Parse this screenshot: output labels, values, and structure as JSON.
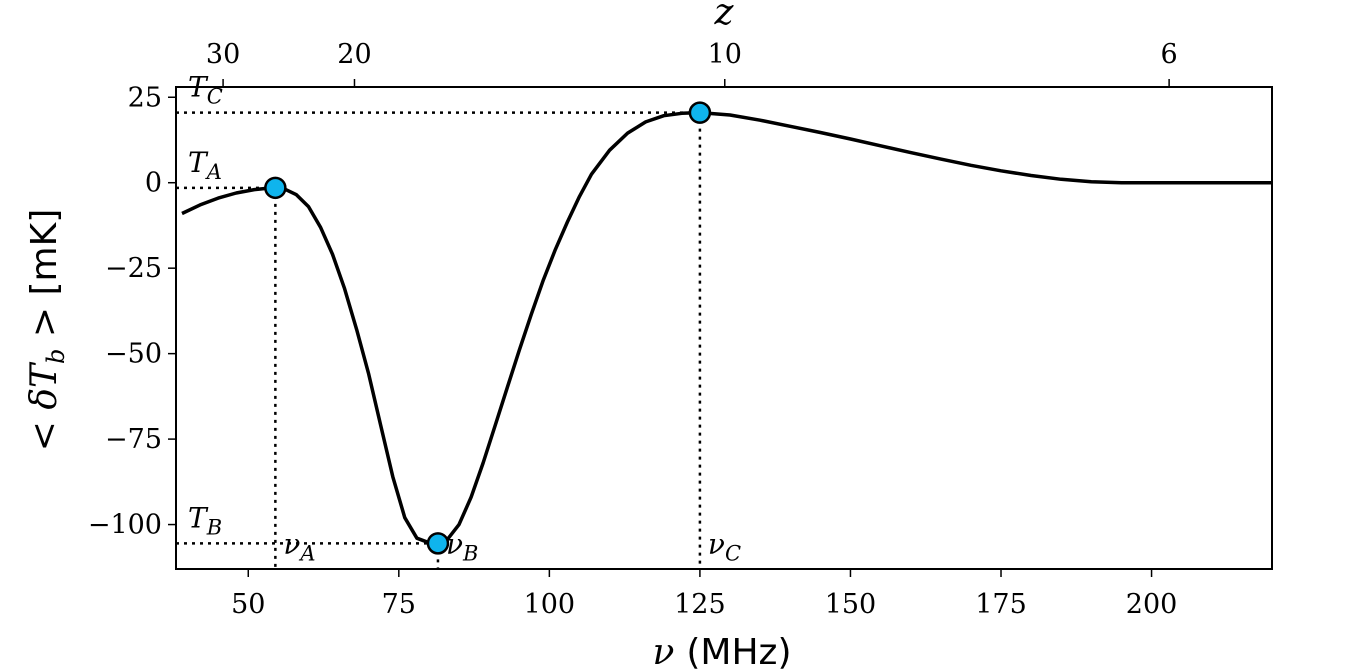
{
  "chart_data": {
    "type": "line",
    "xlabel_symbol": "ν",
    "xlabel_unit": "(MHz)",
    "ylabel_prefix": "< δT",
    "ylabel_sub": "b",
    "ylabel_suffix": " > [mK]",
    "top_axis_label": "z",
    "xlim": [
      38,
      220
    ],
    "ylim": [
      -113,
      28
    ],
    "x_ticks": [
      50,
      75,
      100,
      125,
      150,
      175,
      200
    ],
    "y_ticks": [
      25,
      0,
      -25,
      -50,
      -75,
      -100
    ],
    "y_tick_labels": [
      "25",
      "0",
      "−25",
      "−50",
      "−75",
      "−100"
    ],
    "top_ticks": [
      {
        "label": "30",
        "z": 30
      },
      {
        "label": "20",
        "z": 20
      },
      {
        "label": "10",
        "z": 10
      },
      {
        "label": "6",
        "z": 6
      }
    ],
    "series": [
      {
        "color": "#000000",
        "x": [
          39,
          42,
          45,
          48,
          51,
          54,
          56,
          58,
          60,
          62,
          64,
          66,
          68,
          70,
          72,
          74,
          76,
          78,
          80,
          81.5,
          83,
          85,
          87,
          89,
          91,
          93,
          95,
          97,
          99,
          101,
          103,
          105,
          107,
          110,
          113,
          116,
          119,
          122,
          125,
          130,
          135,
          140,
          145,
          150,
          155,
          160,
          165,
          170,
          175,
          180,
          185,
          190,
          195,
          200,
          205,
          210,
          215,
          220
        ],
        "y": [
          -9,
          -6.5,
          -4.5,
          -3,
          -2,
          -1.5,
          -1.8,
          -3.5,
          -7,
          -13,
          -21,
          -31,
          -43,
          -56,
          -71,
          -86,
          -98,
          -104,
          -105.3,
          -105.5,
          -104.5,
          -100,
          -92,
          -82,
          -71,
          -60,
          -49,
          -38.5,
          -28.5,
          -19.5,
          -11.5,
          -4,
          2.5,
          9.5,
          14.5,
          17.8,
          19.6,
          20.3,
          20.5,
          19.8,
          18.3,
          16.5,
          14.7,
          12.8,
          10.8,
          8.8,
          6.9,
          5.1,
          3.5,
          2.1,
          1,
          0.3,
          0,
          0,
          0,
          0,
          0,
          0
        ]
      }
    ],
    "markers": [
      {
        "x": 54.5,
        "y": -1.5,
        "color": "#0fb4ed",
        "xlabel": "ν",
        "xsub": "A",
        "ylabel": "T",
        "ysub": "A"
      },
      {
        "x": 81.5,
        "y": -105.5,
        "color": "#0fb4ed",
        "xlabel": "ν",
        "xsub": "B",
        "ylabel": "T",
        "ysub": "B"
      },
      {
        "x": 125,
        "y": 20.5,
        "color": "#0fb4ed",
        "xlabel": "ν",
        "xsub": "C",
        "ylabel": "T",
        "ysub": "C"
      }
    ],
    "grid": false,
    "legend": false
  }
}
